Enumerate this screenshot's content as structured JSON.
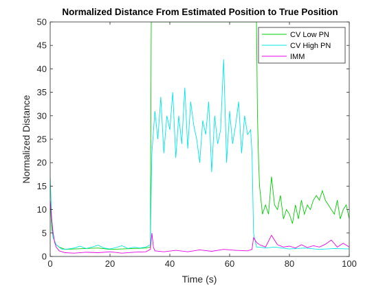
{
  "chart_data": {
    "type": "line",
    "title": "Normalized Distance From Estimated Position to True Position",
    "xlabel": "Time (s)",
    "ylabel": "Normalized Distance",
    "xlim": [
      0,
      100
    ],
    "ylim": [
      0,
      50
    ],
    "xticks": [
      0,
      20,
      40,
      60,
      80,
      100
    ],
    "yticks": [
      0,
      5,
      10,
      15,
      20,
      25,
      30,
      35,
      40,
      45,
      50
    ],
    "grid": false,
    "legend_position": "top-right",
    "series": [
      {
        "name": "CV Low PN",
        "color": "#00cc00",
        "x": [
          0,
          0.5,
          1,
          2,
          3,
          5,
          8,
          12,
          16,
          20,
          24,
          28,
          32,
          33.5,
          33.8,
          34,
          35,
          40,
          50,
          60,
          66,
          67.5,
          68,
          68.5,
          69,
          69.3,
          69.7,
          70,
          71,
          72,
          73,
          74,
          75,
          76,
          77,
          78,
          79,
          80,
          81,
          82,
          83,
          84,
          85,
          86,
          87,
          88,
          89,
          90,
          91,
          92,
          93,
          94,
          95,
          96,
          97,
          98,
          99,
          100
        ],
        "y": [
          12,
          6,
          4,
          2.5,
          2,
          1.5,
          1.6,
          1.7,
          1.8,
          1.5,
          1.6,
          1.7,
          1.8,
          2,
          50,
          50,
          50,
          50,
          50,
          50,
          50,
          50,
          50,
          50,
          50,
          30,
          20,
          15,
          9,
          11,
          9,
          17,
          11,
          10,
          13,
          8,
          10,
          9,
          7,
          11,
          8,
          12,
          9,
          11,
          10,
          12,
          13,
          12,
          14,
          12,
          11,
          10,
          9,
          12,
          8,
          10,
          11,
          8
        ]
      },
      {
        "name": "CV High PN",
        "color": "#00e5e5",
        "x": [
          0,
          0.5,
          1,
          2,
          3,
          4,
          6,
          8,
          10,
          12,
          14,
          16,
          18,
          20,
          22,
          24,
          26,
          28,
          30,
          32,
          33.5,
          33.8,
          34,
          35,
          36,
          37,
          38,
          39,
          40,
          41,
          42,
          43,
          44,
          45,
          46,
          47,
          48,
          49,
          50,
          51,
          52,
          53,
          54,
          55,
          56,
          57,
          58,
          59,
          60,
          61,
          62,
          63,
          64,
          65,
          66,
          67,
          67.5,
          68,
          69,
          70,
          72,
          75,
          80,
          85,
          90,
          95,
          100
        ],
        "y": [
          17,
          8,
          4,
          2.5,
          2,
          1.5,
          1.6,
          1.8,
          2.2,
          1.7,
          2,
          2.4,
          1.8,
          1.6,
          1.9,
          2.3,
          1.7,
          2,
          1.8,
          2,
          2.5,
          15,
          22,
          31,
          25,
          34,
          22,
          30,
          27,
          35,
          21,
          30,
          24,
          36,
          23,
          33,
          28,
          25,
          20,
          29,
          26,
          33,
          18,
          30,
          24,
          27,
          42,
          20,
          31,
          24,
          28,
          33,
          22,
          30,
          26,
          27,
          22,
          5,
          2,
          2,
          1.8,
          2,
          1.6,
          1.8,
          1.5,
          1.7,
          1.6
        ]
      },
      {
        "name": "IMM",
        "color": "#e600e6",
        "x": [
          0,
          0.5,
          1,
          1.5,
          2,
          3,
          5,
          8,
          12,
          16,
          20,
          24,
          28,
          32,
          33.5,
          34,
          34.5,
          35,
          38,
          42,
          46,
          50,
          54,
          58,
          62,
          66,
          67.5,
          68,
          69,
          70,
          72,
          74,
          76,
          78,
          80,
          82,
          84,
          86,
          88,
          90,
          92,
          94,
          96,
          98,
          100
        ],
        "y": [
          12,
          8,
          5,
          3,
          2,
          1.2,
          0.8,
          0.7,
          0.9,
          0.8,
          1,
          0.7,
          0.9,
          1,
          1.5,
          5,
          2,
          1.2,
          1,
          1.3,
          1,
          1.4,
          1.1,
          1.5,
          1.3,
          1.2,
          1.5,
          4,
          3,
          2.5,
          2,
          4.5,
          2.5,
          2,
          2.2,
          1.8,
          2.5,
          1.9,
          2.3,
          2,
          2.6,
          3.5,
          2,
          2.8,
          2
        ]
      }
    ]
  }
}
